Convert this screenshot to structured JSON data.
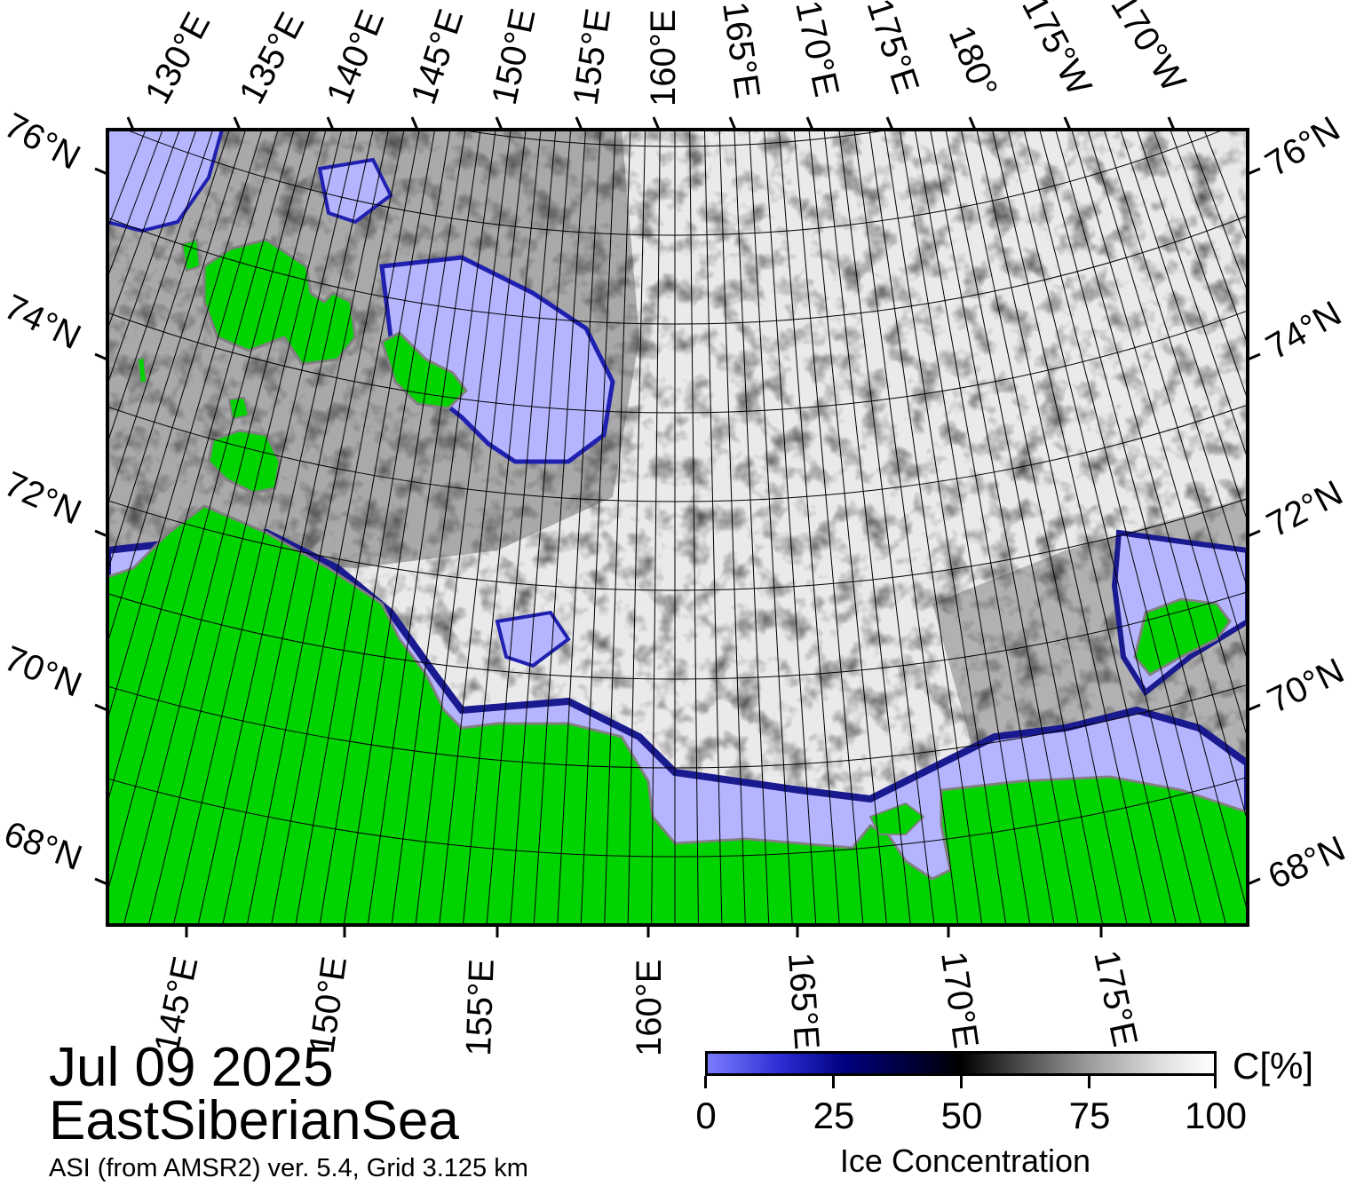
{
  "map": {
    "region": "EastSiberianSea",
    "date": "Jul 09 2025",
    "source": "ASI (from AMSR2) ver. 5.4,  Grid 3.125 km",
    "top_lon_labels": [
      "130°E",
      "135°E",
      "140°E",
      "145°E",
      "150°E",
      "155°E",
      "160°E",
      "165°E",
      "170°E",
      "175°E",
      "180°",
      "175°W",
      "170°W"
    ],
    "bottom_lon_labels": [
      "145°E",
      "150°E",
      "155°E",
      "160°E",
      "165°E",
      "170°E",
      "175°E"
    ],
    "left_lat_labels": [
      "76°N",
      "74°N",
      "72°N",
      "70°N",
      "68°N"
    ],
    "right_lat_labels": [
      "76°N",
      "74°N",
      "72°N",
      "70°N",
      "68°N"
    ],
    "colors": {
      "land": "#00d400",
      "open_water": "#b4b4ff",
      "low_ice": "#3030c0",
      "high_ice": "#ffffff",
      "coast": "#808080"
    }
  },
  "colorbar": {
    "ticks": [
      "0",
      "25",
      "50",
      "75",
      "100"
    ],
    "unit": "C[%]",
    "title": "Ice Concentration"
  }
}
